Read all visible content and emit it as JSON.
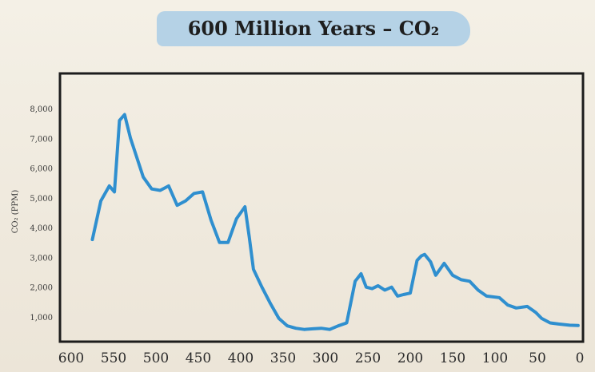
{
  "chart_data": {
    "type": "line",
    "title": "600 Million Years – CO₂",
    "ylabel": "CO₂ (PPM)",
    "xlabel": "",
    "xlim": [
      600,
      0
    ],
    "ylim": [
      0,
      9000
    ],
    "x_ticks": [
      600,
      550,
      500,
      450,
      400,
      350,
      300,
      250,
      200,
      150,
      100,
      50,
      0
    ],
    "x_tick_labels": [
      "600",
      "550",
      "500",
      "450",
      "400",
      "350",
      "300",
      "250",
      "200",
      "150",
      "100",
      "50",
      "0"
    ],
    "y_ticks": [
      1000,
      2000,
      3000,
      4000,
      5000,
      6000,
      7000,
      8000
    ],
    "y_tick_labels": [
      "1,000",
      "2,000",
      "3,000",
      "4,000",
      "5,000",
      "6,000",
      "7,000",
      "8,000"
    ],
    "grid": false,
    "series": [
      {
        "color": "#2f8fcf",
        "x": [
          575,
          565,
          555,
          549,
          543,
          537,
          530,
          515,
          505,
          495,
          485,
          475,
          465,
          455,
          445,
          435,
          425,
          415,
          405,
          395,
          390,
          385,
          375,
          365,
          355,
          345,
          335,
          325,
          315,
          305,
          295,
          285,
          275,
          265,
          258,
          252,
          245,
          238,
          230,
          222,
          215,
          208,
          200,
          192,
          187,
          183,
          176,
          170,
          160,
          150,
          140,
          130,
          120,
          110,
          95,
          85,
          75,
          62,
          52,
          45,
          35,
          25,
          12,
          2
        ],
        "values": [
          3600,
          4900,
          5400,
          5200,
          7600,
          7800,
          7000,
          5700,
          5300,
          5250,
          5400,
          4750,
          4900,
          5150,
          5200,
          4250,
          3500,
          3500,
          4300,
          4700,
          3700,
          2600,
          2000,
          1450,
          950,
          700,
          620,
          580,
          600,
          620,
          580,
          700,
          800,
          2200,
          2450,
          2000,
          1950,
          2050,
          1900,
          2000,
          1700,
          1750,
          1800,
          2900,
          3050,
          3100,
          2850,
          2400,
          2800,
          2400,
          2250,
          2200,
          1900,
          1700,
          1650,
          1400,
          1300,
          1350,
          1150,
          950,
          800,
          760,
          720,
          710
        ]
      }
    ]
  }
}
